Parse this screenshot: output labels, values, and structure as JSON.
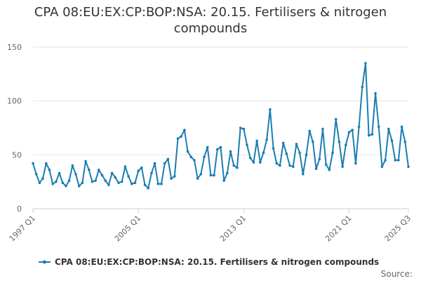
{
  "chart_data": {
    "type": "line",
    "title": "CPA 08:EU:EX:CP:BOP:NSA: 20.15. Fertilisers & nitrogen compounds",
    "title_lines": [
      "CPA 08:EU:EX:CP:BOP:NSA: 20.15. Fertilisers & nitrogen",
      "compounds"
    ],
    "xlabel": "",
    "ylabel": "",
    "x_start": "1997 Q1",
    "x_end": "2025 Q3",
    "x_ticks": [
      "1997 Q1",
      "2005 Q1",
      "2013 Q1",
      "2021 Q1",
      "2025 Q3"
    ],
    "ylim": [
      0,
      150
    ],
    "y_ticks": [
      "0",
      "50",
      "100",
      "150"
    ],
    "grid": true,
    "legend_position": "bottom",
    "series": [
      {
        "name": "CPA 08:EU:EX:CP:BOP:NSA: 20.15. Fertilisers & nitrogen compounds",
        "color": "#1b7db3",
        "values": [
          42,
          32,
          24,
          28,
          42,
          36,
          23,
          25,
          33,
          24,
          21,
          26,
          40,
          32,
          21,
          24,
          44,
          36,
          25,
          26,
          36,
          31,
          26,
          22,
          33,
          29,
          24,
          25,
          39,
          30,
          23,
          24,
          35,
          38,
          22,
          19,
          33,
          42,
          23,
          23,
          42,
          46,
          28,
          30,
          65,
          67,
          73,
          53,
          48,
          45,
          28,
          32,
          48,
          57,
          31,
          31,
          55,
          57,
          26,
          33,
          53,
          40,
          38,
          75,
          74,
          59,
          47,
          43,
          63,
          43,
          52,
          64,
          92,
          56,
          42,
          40,
          61,
          51,
          40,
          39,
          60,
          52,
          32,
          50,
          72,
          62,
          37,
          46,
          74,
          41,
          36,
          52,
          83,
          62,
          39,
          59,
          71,
          73,
          42,
          76,
          113,
          135,
          68,
          69,
          107,
          76,
          39,
          45,
          74,
          63,
          45,
          45,
          76,
          62,
          39
        ]
      }
    ]
  },
  "source_label": "Source:"
}
